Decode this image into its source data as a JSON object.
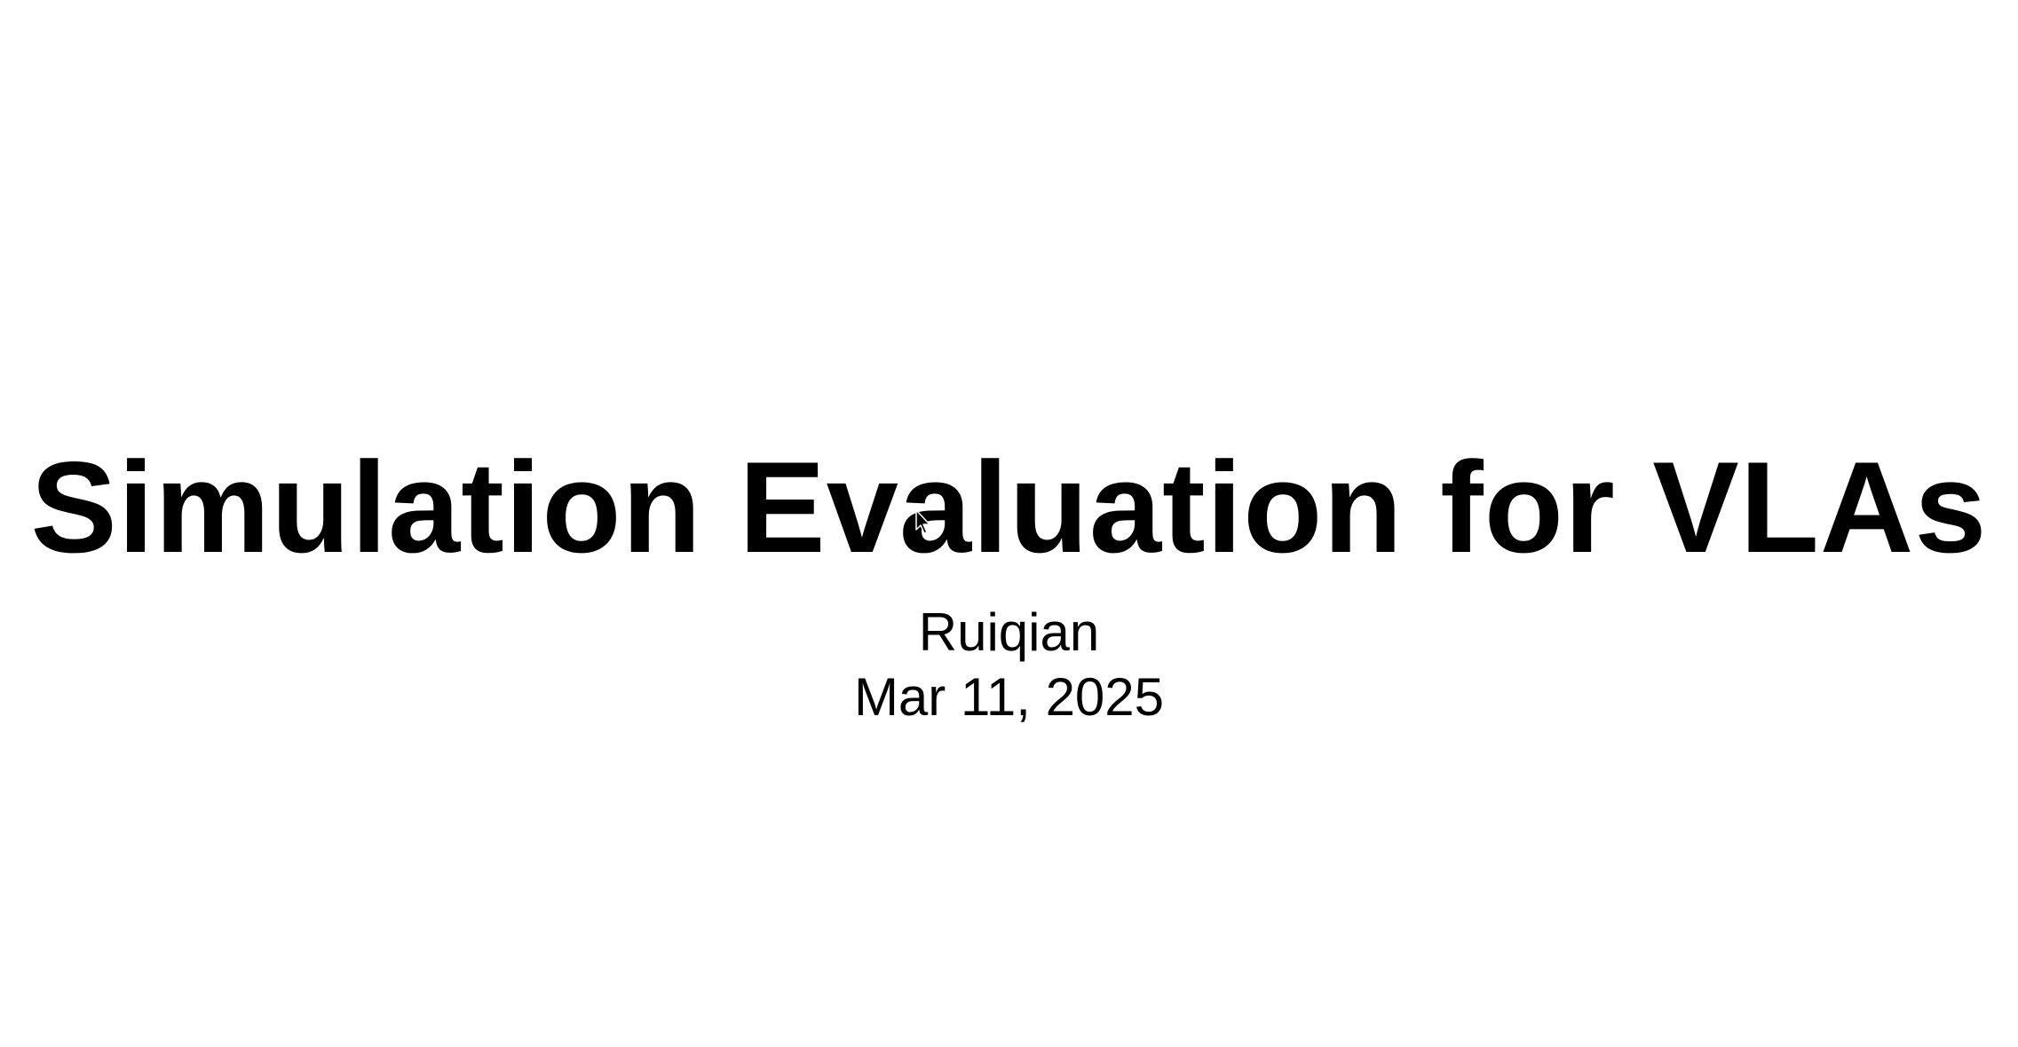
{
  "slide": {
    "title": "Simulation Evaluation for VLAs",
    "author": "Ruiqian",
    "date": "Mar 11, 2025"
  },
  "cursor": {
    "icon": "mouse-pointer-icon"
  },
  "colors": {
    "background": "#ffffff",
    "text": "#000000"
  }
}
